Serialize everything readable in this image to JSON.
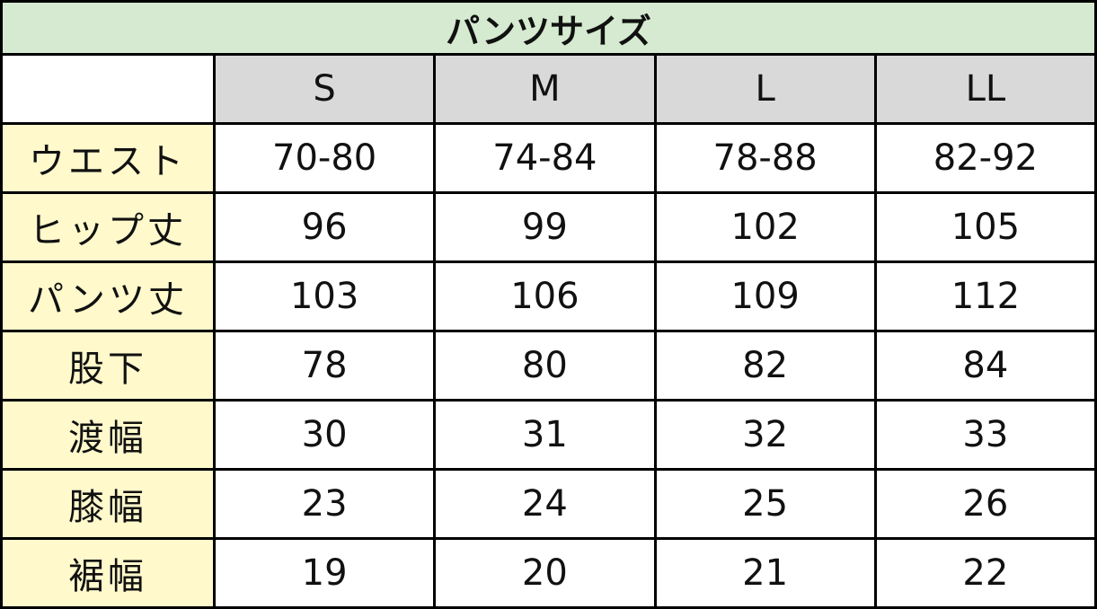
{
  "title": "パンツサイズ",
  "sizes": [
    "S",
    "M",
    "L",
    "LL"
  ],
  "rows": [
    {
      "label": "ウエスト",
      "values": [
        "70-80",
        "74-84",
        "78-88",
        "82-92"
      ]
    },
    {
      "label": "ヒップ丈",
      "values": [
        "96",
        "99",
        "102",
        "105"
      ]
    },
    {
      "label": "パンツ丈",
      "values": [
        "103",
        "106",
        "109",
        "112"
      ]
    },
    {
      "label": "股下",
      "values": [
        "78",
        "80",
        "82",
        "84"
      ]
    },
    {
      "label": "渡幅",
      "values": [
        "30",
        "31",
        "32",
        "33"
      ]
    },
    {
      "label": "膝幅",
      "values": [
        "23",
        "24",
        "25",
        "26"
      ]
    },
    {
      "label": "裾幅",
      "values": [
        "19",
        "20",
        "21",
        "22"
      ]
    }
  ],
  "colors": {
    "title_bg": "#d5ead0",
    "header_bg": "#d9d9d9",
    "label_bg": "#fff9cc"
  }
}
